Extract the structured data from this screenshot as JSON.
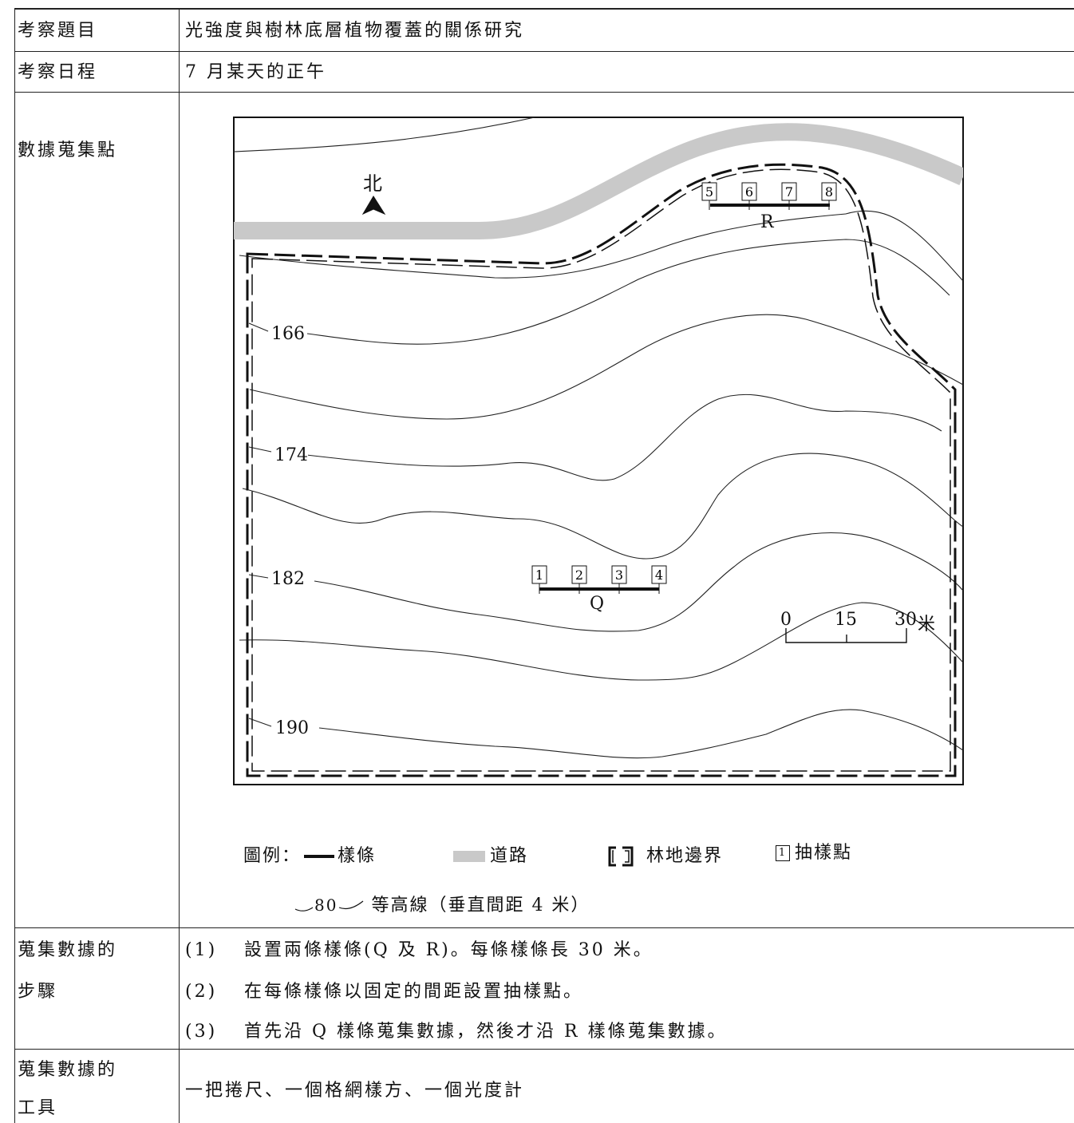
{
  "table": {
    "topic_label": "考察題目",
    "topic_value": "光強度與樹林底層植物覆蓋的關係研究",
    "date_label": "考察日程",
    "date_value": "7 月某天的正午",
    "site_label": "數據蒐集點",
    "steps_label_1": "蒐集數據的",
    "steps_label_2": "步驟",
    "steps": [
      {
        "num": "(1)",
        "text": "設置兩條樣條(Q 及 R)。每條樣條長 30 米。"
      },
      {
        "num": "(2)",
        "text": "在每條樣條以固定的間距設置抽樣點。"
      },
      {
        "num": "(3)",
        "text": "首先沿 Q 樣條蒐集數據，然後才沿 R 樣條蒐集數據。"
      }
    ],
    "tools_label_1": "蒐集數據的",
    "tools_label_2": "工具",
    "tools_value": "一把捲尺、一個格網樣方、一個光度計"
  },
  "map": {
    "north_label": "北",
    "contour_labels": [
      "166",
      "174",
      "182",
      "190"
    ],
    "transect_q_label": "Q",
    "transect_r_label": "R",
    "sample_points_q": [
      "1",
      "2",
      "3",
      "4"
    ],
    "sample_points_r": [
      "5",
      "6",
      "7",
      "8"
    ],
    "scale": {
      "ticks": [
        "0",
        "15",
        "30"
      ],
      "unit": "米"
    }
  },
  "legend": {
    "prefix": "圖例：",
    "transect": "樣條",
    "road": "道路",
    "boundary": "林地邊界",
    "sample_point": "抽樣點",
    "contour_sample": "80",
    "contour": "等高線（垂直間距 4 米）"
  },
  "colors": {
    "road": "#c9c9c9",
    "line": "#111111"
  }
}
